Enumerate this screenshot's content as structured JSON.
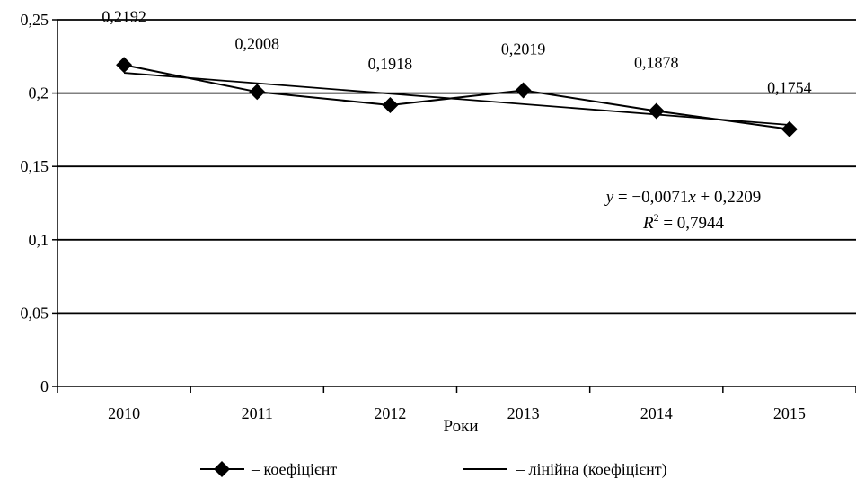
{
  "chart_data": {
    "type": "line",
    "title": "",
    "xlabel": "Роки",
    "ylabel": "",
    "categories": [
      "2010",
      "2011",
      "2012",
      "2013",
      "2014",
      "2015"
    ],
    "series": [
      {
        "name": "коефіцієнт",
        "values": [
          0.2192,
          0.2008,
          0.1918,
          0.2019,
          0.1878,
          0.1754
        ],
        "labels": [
          "0,2192",
          "0,2008",
          "0,1918",
          "0,2019",
          "0,1878",
          "0,1754"
        ],
        "marker": "diamond",
        "color": "#000000"
      }
    ],
    "trendline": {
      "name": "лінійна (коефіцієнт)",
      "type": "linear",
      "slope": -0.0071,
      "intercept": 0.2209,
      "r_squared": 0.7944,
      "equation_lines": {
        "y": "y",
        "equation": " = −0,0071",
        "x": "x",
        "intercept": " + 0,2209",
        "r": "R",
        "r_sup": "2",
        "r_value": " = 0,7944"
      }
    },
    "ylim": [
      0,
      0.25
    ],
    "y_ticks": [
      0,
      0.05,
      0.1,
      0.15,
      0.2,
      0.25
    ],
    "y_tick_labels": [
      "0",
      "0,05",
      "0,1",
      "0,15",
      "0,2",
      "0,25"
    ],
    "grid": "horizontal",
    "legend": {
      "placement": "bottom",
      "entries": [
        "– коефіцієнт",
        "– лінійна (коефіцієнт)"
      ]
    }
  }
}
